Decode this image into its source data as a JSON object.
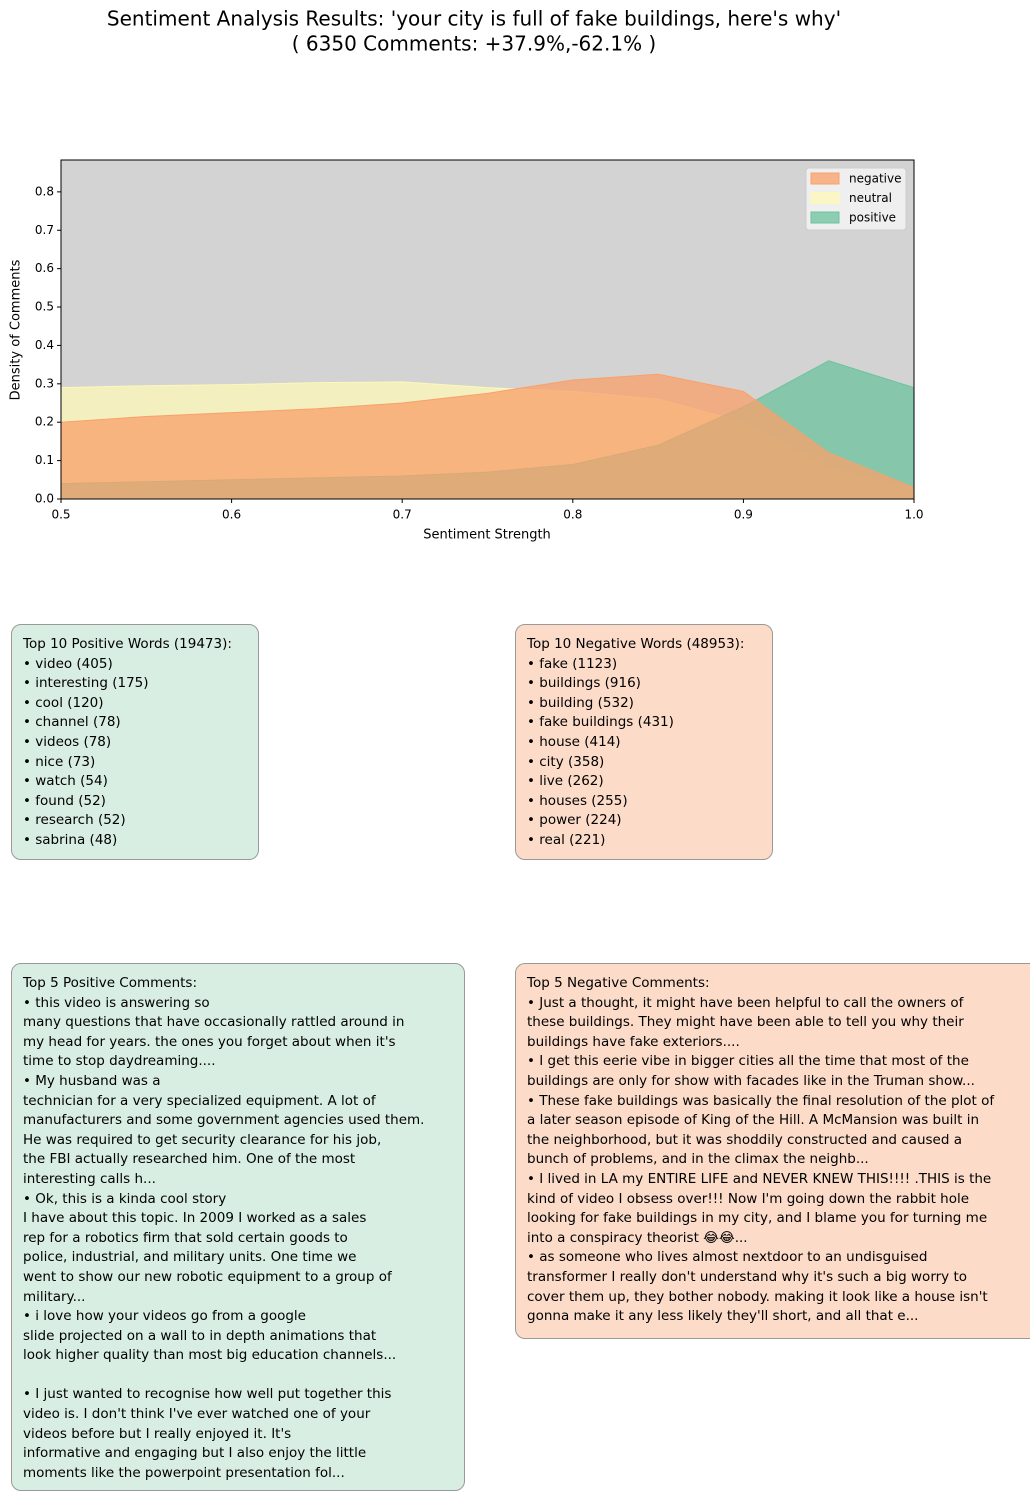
{
  "chart_data": {
    "type": "area",
    "title": "Sentiment Analysis Results: 'your city is full of fake buildings, here's why'",
    "subtitle": "( 6350 Comments: +37.9%,-62.1% )",
    "xlabel": "Sentiment Strength",
    "ylabel": "Density of Comments",
    "x": [
      0.5,
      0.55,
      0.6,
      0.65,
      0.7,
      0.75,
      0.8,
      0.85,
      0.9,
      0.95,
      1.0
    ],
    "series": [
      {
        "name": "negative",
        "color": "#f9a06a",
        "values": [
          0.2,
          0.215,
          0.225,
          0.235,
          0.25,
          0.275,
          0.31,
          0.325,
          0.28,
          0.12,
          0.03
        ]
      },
      {
        "name": "neutral",
        "color": "#fdf8b8",
        "values": [
          0.29,
          0.295,
          0.298,
          0.303,
          0.305,
          0.29,
          0.28,
          0.26,
          0.2,
          0.08,
          0.025
        ]
      },
      {
        "name": "positive",
        "color": "#6cc39f",
        "values": [
          0.04,
          0.045,
          0.05,
          0.055,
          0.06,
          0.07,
          0.09,
          0.14,
          0.24,
          0.36,
          0.29
        ]
      }
    ],
    "xlim": [
      0.5,
      1.0
    ],
    "xticks": [
      0.5,
      0.6,
      0.7,
      0.8,
      0.9,
      {
        "value": 1,
        "label": "1.0"
      }
    ],
    "ylim": [
      0,
      0.883
    ],
    "yticks": [
      {
        "value": 0,
        "label": "0.0"
      },
      0.1,
      0.2,
      0.3,
      0.4,
      0.5,
      0.6,
      0.7,
      0.8
    ],
    "legend": "upper right",
    "background": "#d3d3d3"
  },
  "positive_words": {
    "title": "Top 10 Positive Words (19473):",
    "items": [
      "• video (405)",
      "• interesting (175)",
      "• cool (120)",
      "• channel (78)",
      "• videos (78)",
      "• nice (73)",
      "• watch (54)",
      "• found (52)",
      "• research (52)",
      "• sabrina (48)"
    ]
  },
  "negative_words": {
    "title": "Top 10 Negative Words (48953):",
    "items": [
      "• fake (1123)",
      "• buildings (916)",
      "• building (532)",
      "• fake buildings (431)",
      "• house (414)",
      "• city (358)",
      "• live (262)",
      "• houses (255)",
      "• power (224)",
      "• real (221)"
    ]
  },
  "positive_comments": {
    "title": "Top 5 Positive Comments:",
    "comments": [
      [
        "•  this video is answering so",
        "many questions that have occasionally rattled around in",
        "my head for years. the ones you forget about when it's",
        "time to stop daydreaming...."
      ],
      [
        "•  My husband was a",
        "technician for a very specialized equipment. A lot of",
        "manufacturers and some government agencies used them.",
        "He was required to get security clearance for his job,",
        "the FBI actually researched him.  One of the most",
        "interesting calls h..."
      ],
      [
        "•  Ok, this is a kinda cool story",
        "I have about this topic.  In 2009 I worked as a sales",
        "rep for a robotics firm that sold certain goods to",
        "police, industrial, and military units.  One time we",
        "went to show our new robotic equipment to a group of",
        "military..."
      ],
      [
        "•  i love how your videos go from a google",
        "slide projected on a wall to in depth animations that",
        "look higher quality than most big education channels..."
      ],
      [
        "•  I just wanted to recognise how well put together this",
        "video is. I don't think I've ever watched one of your",
        "videos before but I really enjoyed it.  It's",
        "informative and engaging but I also enjoy the little",
        "moments like the powerpoint presentation fol..."
      ]
    ]
  },
  "negative_comments": {
    "title": "Top 5 Negative Comments:",
    "comments": [
      [
        "• Just a thought, it might have been helpful to call the owners of",
        "these buildings. They might have been able to tell you why their",
        "buildings have fake exteriors...."
      ],
      [
        "• I get this eerie vibe in bigger cities all the time that most of the",
        "buildings are only for show with facades like in the Truman show..."
      ],
      [
        "• These fake buildings was basically the final resolution of the plot of",
        "a later season episode of King of the Hill. A McMansion was built in",
        "the neighborhood, but it was shoddily constructed and caused a",
        "bunch of problems, and in the climax the neighb..."
      ],
      [
        "• I lived in LA my ENTIRE LIFE and NEVER KNEW THIS!!!! .THIS is the",
        "kind of video I obsess over!!! Now I'm going down the rabbit hole",
        "looking for fake buildings in my city, and I blame you for turning me",
        "into a conspiracy theorist 😂😂..."
      ],
      [
        "• as someone who lives almost nextdoor to an undisguised",
        "transformer I really don't understand why it's such a big worry to",
        "cover them up, they bother nobody. making it look like a house isn't",
        "gonna make it any less likely they'll short, and all that e..."
      ]
    ]
  }
}
